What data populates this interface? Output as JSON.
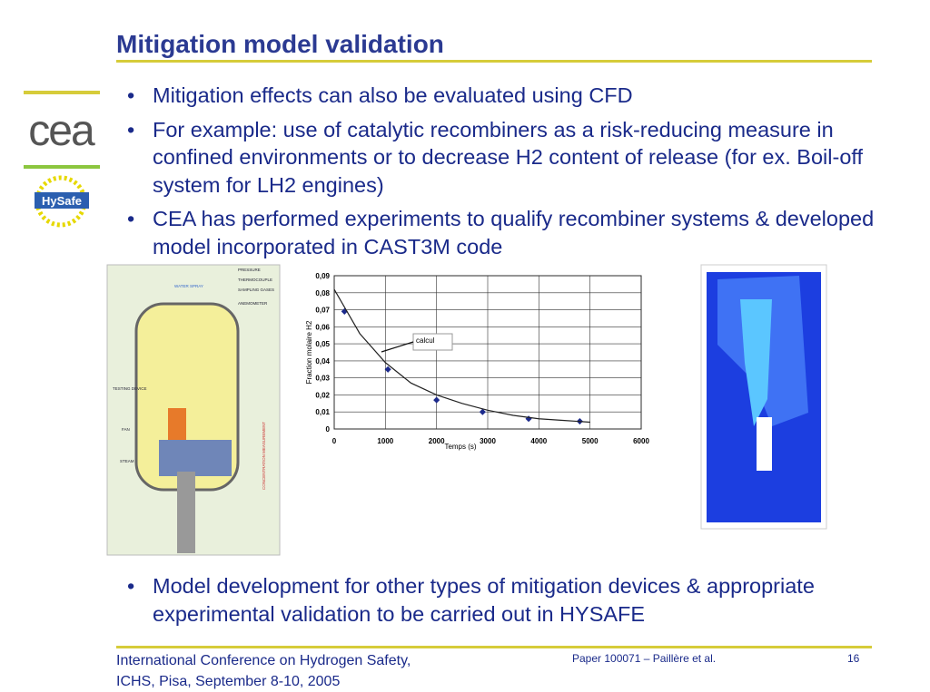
{
  "header": {
    "title": "Mitigation model validation"
  },
  "logos": {
    "cea": "cea",
    "hysafe": "HySafe"
  },
  "bullets": [
    "Mitigation effects can also be evaluated using CFD",
    "For example: use of catalytic recombiners as a risk-reducing measure in confined environments or to decrease H2 content of release (for ex. Boil-off system for LH2 engines)",
    "CEA has performed experiments to qualify recombiner systems & developed model incorporated in CAST3M code"
  ],
  "bullets_bottom": [
    "Model development for other types of mitigation devices & appropriate experimental validation to be carried out in HYSAFE"
  ],
  "vessel": {
    "legend": [
      "PRESSURE",
      "THERMOCOUPLE",
      "SAMPLING GASES",
      "ANEMOMETER"
    ],
    "labels": [
      "WATER SPRAY",
      "TESTING DEVICE",
      "FAN",
      "STEAM",
      "CONCENTRATION MEASUREMENT"
    ]
  },
  "figure": {
    "chart": {
      "type": "scatter",
      "x_label": "Temps (s)",
      "y_label": "Fraction molaire H2",
      "annotation": "calcul",
      "xlim": [
        0,
        6000
      ],
      "xticks": [
        0,
        1000,
        2000,
        3000,
        4000,
        5000,
        6000
      ],
      "ylim": [
        0,
        0.09
      ],
      "yticks": [
        {
          "value": 0,
          "label": "0"
        },
        {
          "value": 0.01,
          "label": "0,01"
        },
        {
          "value": 0.02,
          "label": "0,02"
        },
        {
          "value": 0.03,
          "label": "0,03"
        },
        {
          "value": 0.04,
          "label": "0,04"
        },
        {
          "value": 0.05,
          "label": "0,05"
        },
        {
          "value": 0.06,
          "label": "0,06"
        },
        {
          "value": 0.07,
          "label": "0,07"
        },
        {
          "value": 0.08,
          "label": "0,08"
        },
        {
          "value": 0.09,
          "label": "0,09"
        }
      ],
      "grid": true,
      "series": [
        {
          "type": "scatter",
          "color": "#1c2a8c",
          "x": [
            200,
            1050,
            2000,
            2900,
            3800,
            4800
          ],
          "values": [
            0.069,
            0.035,
            0.017,
            0.01,
            0.006,
            0.0045
          ]
        },
        {
          "type": "line",
          "color": "#222222",
          "x": [
            0,
            500,
            1000,
            1500,
            2000,
            2500,
            3000,
            3500,
            4000,
            4500,
            5000
          ],
          "values": [
            0.082,
            0.056,
            0.039,
            0.027,
            0.02,
            0.015,
            0.011,
            0.008,
            0.006,
            0.005,
            0.004
          ]
        }
      ]
    }
  },
  "footer": {
    "conference": "International Conference on Hydrogen Safety,",
    "place": "ICHS, Pisa, September 8-10, 2005",
    "paper": "Paper 100071 – Paillère et al.",
    "page": "16"
  }
}
